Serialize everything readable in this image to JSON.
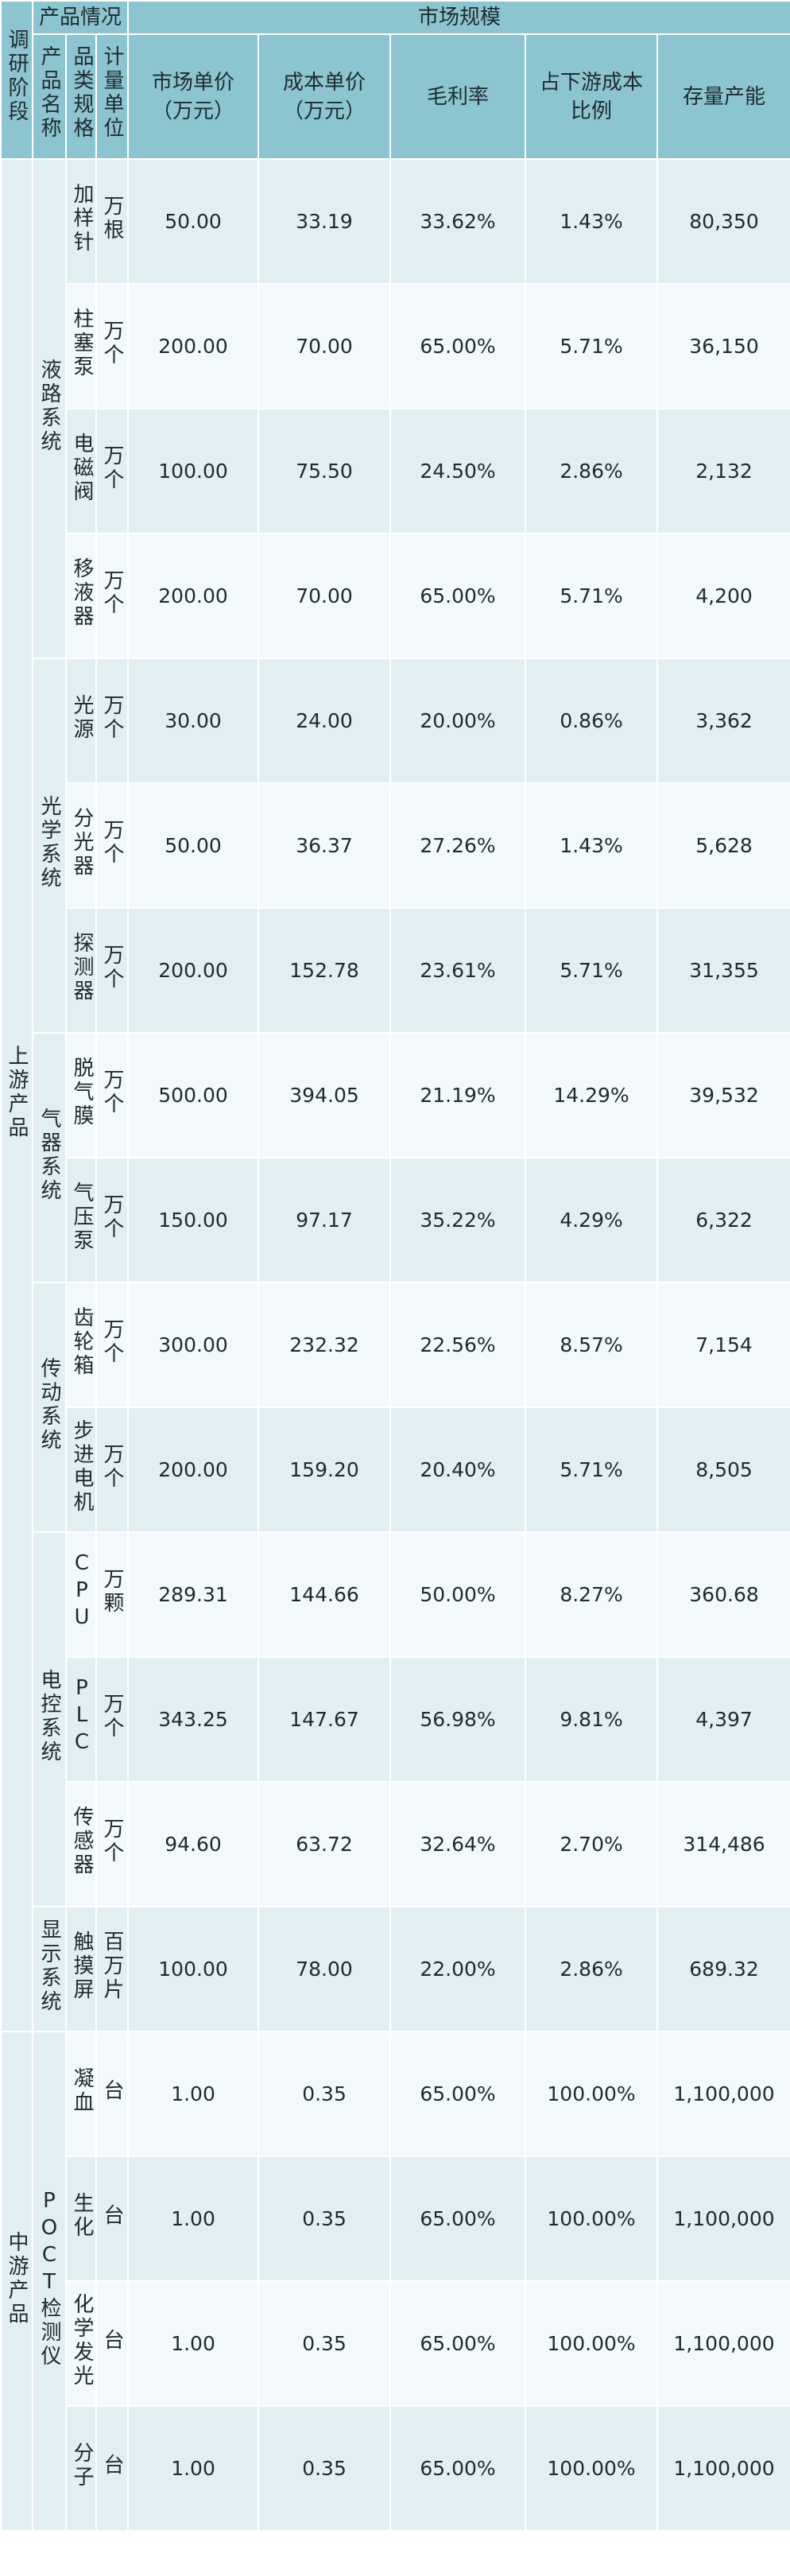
{
  "header": {
    "stage": "调研阶段",
    "product_info": "产品情况",
    "market_size": "市场规模",
    "product_name": "产品名称",
    "product_type": "品类规格",
    "unit": "计量单位",
    "market_price": "市场单价\n（万元）",
    "cost_price": "成本单价\n（万元）",
    "gross_margin": "毛利率",
    "cost_ratio": "占下游成本\n比例",
    "capacity": "存量产能"
  },
  "stages": [
    {
      "label": "上游产品",
      "groups": [
        {
          "label": "液路系统",
          "rows": [
            {
              "name": "加样针",
              "unit": "万根",
              "price": "50.00",
              "cost": "33.19",
              "margin": "33.62%",
              "ratio": "1.43%",
              "capacity": "80,350"
            },
            {
              "name": "柱塞泵",
              "unit": "万个",
              "price": "200.00",
              "cost": "70.00",
              "margin": "65.00%",
              "ratio": "5.71%",
              "capacity": "36,150"
            },
            {
              "name": "电磁阀",
              "unit": "万个",
              "price": "100.00",
              "cost": "75.50",
              "margin": "24.50%",
              "ratio": "2.86%",
              "capacity": "2,132"
            },
            {
              "name": "移液器",
              "unit": "万个",
              "price": "200.00",
              "cost": "70.00",
              "margin": "65.00%",
              "ratio": "5.71%",
              "capacity": "4,200"
            }
          ]
        },
        {
          "label": "光学系统",
          "rows": [
            {
              "name": "光源",
              "unit": "万个",
              "price": "30.00",
              "cost": "24.00",
              "margin": "20.00%",
              "ratio": "0.86%",
              "capacity": "3,362"
            },
            {
              "name": "分光器",
              "unit": "万个",
              "price": "50.00",
              "cost": "36.37",
              "margin": "27.26%",
              "ratio": "1.43%",
              "capacity": "5,628"
            },
            {
              "name": "探测器",
              "unit": "万个",
              "price": "200.00",
              "cost": "152.78",
              "margin": "23.61%",
              "ratio": "5.71%",
              "capacity": "31,355"
            }
          ]
        },
        {
          "label": "气器系统",
          "rows": [
            {
              "name": "脱气膜",
              "unit": "万个",
              "price": "500.00",
              "cost": "394.05",
              "margin": "21.19%",
              "ratio": "14.29%",
              "capacity": "39,532"
            },
            {
              "name": "气压泵",
              "unit": "万个",
              "price": "150.00",
              "cost": "97.17",
              "margin": "35.22%",
              "ratio": "4.29%",
              "capacity": "6,322"
            }
          ]
        },
        {
          "label": "传动系统",
          "rows": [
            {
              "name": "齿轮箱",
              "unit": "万个",
              "price": "300.00",
              "cost": "232.32",
              "margin": "22.56%",
              "ratio": "8.57%",
              "capacity": "7,154"
            },
            {
              "name": "步进电机",
              "unit": "万个",
              "price": "200.00",
              "cost": "159.20",
              "margin": "20.40%",
              "ratio": "5.71%",
              "capacity": "8,505"
            }
          ]
        },
        {
          "label": "电控系统",
          "rows": [
            {
              "name": "CPU",
              "unit": "万颗",
              "price": "289.31",
              "cost": "144.66",
              "margin": "50.00%",
              "ratio": "8.27%",
              "capacity": "360.68"
            },
            {
              "name": "PLC",
              "unit": "万个",
              "price": "343.25",
              "cost": "147.67",
              "margin": "56.98%",
              "ratio": "9.81%",
              "capacity": "4,397"
            },
            {
              "name": "传感器",
              "unit": "万个",
              "price": "94.60",
              "cost": "63.72",
              "margin": "32.64%",
              "ratio": "2.70%",
              "capacity": "314,486"
            }
          ]
        },
        {
          "label": "显示系统",
          "rows": [
            {
              "name": "触摸屏",
              "unit": "百万片",
              "price": "100.00",
              "cost": "78.00",
              "margin": "22.00%",
              "ratio": "2.86%",
              "capacity": "689.32"
            }
          ]
        }
      ]
    },
    {
      "label": "中游产品",
      "groups": [
        {
          "label": "POCT检测仪",
          "rows": [
            {
              "name": "凝血",
              "unit": "台",
              "price": "1.00",
              "cost": "0.35",
              "margin": "65.00%",
              "ratio": "100.00%",
              "capacity": "1,100,000"
            },
            {
              "name": "生化",
              "unit": "台",
              "price": "1.00",
              "cost": "0.35",
              "margin": "65.00%",
              "ratio": "100.00%",
              "capacity": "1,100,000"
            },
            {
              "name": "化学发光",
              "unit": "台",
              "price": "1.00",
              "cost": "0.35",
              "margin": "65.00%",
              "ratio": "100.00%",
              "capacity": "1,100,000"
            },
            {
              "name": "分子",
              "unit": "台",
              "price": "1.00",
              "cost": "0.35",
              "margin": "65.00%",
              "ratio": "100.00%",
              "capacity": "1,100,000"
            }
          ]
        }
      ]
    }
  ]
}
